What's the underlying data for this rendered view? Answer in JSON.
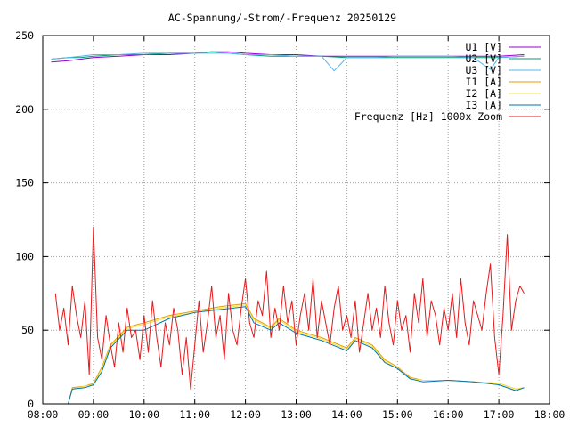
{
  "chart_data": {
    "type": "line",
    "title": "AC-Spannung/-Strom/-Frequenz 20250129",
    "xlabel": "",
    "ylabel": "",
    "grid": true,
    "legend_position": "top-right",
    "x_ticks": [
      "08:00",
      "09:00",
      "10:00",
      "11:00",
      "12:00",
      "13:00",
      "14:00",
      "15:00",
      "16:00",
      "17:00",
      "18:00"
    ],
    "y_ticks": [
      "0",
      "50",
      "100",
      "150",
      "200",
      "250"
    ],
    "xlim": [
      "08:00",
      "18:00"
    ],
    "ylim": [
      0,
      250
    ],
    "series": [
      {
        "name": "U1 [V]",
        "color": "#9400d3",
        "x": [
          "08:10",
          "08:30",
          "08:45",
          "09:00",
          "09:30",
          "10:00",
          "10:30",
          "11:00",
          "11:20",
          "11:40",
          "12:00",
          "12:30",
          "13:00",
          "13:30",
          "14:00",
          "14:30",
          "15:00",
          "15:30",
          "16:00",
          "16:30",
          "17:00",
          "17:30"
        ],
        "y": [
          232,
          233,
          234,
          235,
          236,
          237,
          237,
          238,
          239,
          239,
          238,
          237,
          237,
          236,
          236,
          236,
          236,
          236,
          236,
          236,
          236,
          237
        ]
      },
      {
        "name": "U2 [V]",
        "color": "#009e73",
        "x": [
          "08:10",
          "08:30",
          "08:45",
          "09:00",
          "09:30",
          "10:00",
          "10:30",
          "11:00",
          "11:20",
          "11:40",
          "12:00",
          "12:30",
          "13:00",
          "13:30",
          "14:00",
          "14:30",
          "15:00",
          "15:30",
          "16:00",
          "16:30",
          "17:00",
          "17:30"
        ],
        "y": [
          234,
          235,
          235,
          236,
          237,
          237,
          238,
          238,
          239,
          238,
          237,
          236,
          236,
          236,
          235,
          235,
          235,
          235,
          235,
          235,
          235,
          236
        ]
      },
      {
        "name": "U3 [V]",
        "color": "#56b4e9",
        "x": [
          "08:10",
          "08:30",
          "08:45",
          "09:00",
          "09:30",
          "10:00",
          "10:30",
          "11:00",
          "11:20",
          "11:40",
          "12:00",
          "12:30",
          "13:00",
          "13:30",
          "13:45",
          "14:00",
          "14:30",
          "15:00",
          "15:30",
          "16:00",
          "16:30",
          "16:50",
          "17:00",
          "17:30"
        ],
        "y": [
          234,
          235,
          236,
          237,
          237,
          238,
          238,
          238,
          238,
          238,
          237,
          237,
          236,
          236,
          226,
          235,
          235,
          236,
          236,
          236,
          235,
          227,
          235,
          236
        ]
      },
      {
        "name": "I1 [A]",
        "color": "#e69f00",
        "x": [
          "08:30",
          "08:35",
          "08:50",
          "09:00",
          "09:10",
          "09:20",
          "09:40",
          "10:00",
          "10:30",
          "11:00",
          "11:30",
          "12:00",
          "12:10",
          "12:30",
          "12:40",
          "13:00",
          "13:30",
          "14:00",
          "14:10",
          "14:30",
          "14:45",
          "15:00",
          "15:15",
          "15:30",
          "16:00",
          "16:30",
          "17:00",
          "17:20",
          "17:30"
        ],
        "y": [
          0,
          11,
          12,
          14,
          25,
          40,
          52,
          55,
          60,
          63,
          66,
          68,
          58,
          52,
          58,
          50,
          45,
          38,
          45,
          40,
          30,
          25,
          18,
          16,
          16,
          15,
          14,
          10,
          11
        ]
      },
      {
        "name": "I2 [A]",
        "color": "#f0e442",
        "x": [
          "08:30",
          "08:35",
          "08:50",
          "09:00",
          "09:10",
          "09:20",
          "09:40",
          "10:00",
          "10:30",
          "11:00",
          "11:30",
          "12:00",
          "12:10",
          "12:30",
          "12:40",
          "13:00",
          "13:30",
          "14:00",
          "14:10",
          "14:30",
          "14:45",
          "15:00",
          "15:15",
          "15:30",
          "16:00",
          "16:30",
          "17:00",
          "17:20",
          "17:30"
        ],
        "y": [
          0,
          10,
          12,
          13,
          24,
          39,
          51,
          54,
          59,
          62,
          65,
          67,
          57,
          51,
          57,
          49,
          44,
          37,
          44,
          39,
          29,
          24,
          17,
          16,
          16,
          15,
          14,
          10,
          11
        ]
      },
      {
        "name": "I3 [A]",
        "color": "#0072b2",
        "x": [
          "08:30",
          "08:35",
          "08:50",
          "09:00",
          "09:10",
          "09:20",
          "09:40",
          "10:00",
          "10:30",
          "11:00",
          "11:30",
          "12:00",
          "12:10",
          "12:30",
          "12:40",
          "13:00",
          "13:30",
          "14:00",
          "14:10",
          "14:30",
          "14:45",
          "15:00",
          "15:15",
          "15:30",
          "16:00",
          "16:30",
          "17:00",
          "17:20",
          "17:30"
        ],
        "y": [
          0,
          10,
          11,
          13,
          22,
          38,
          50,
          50,
          58,
          62,
          64,
          66,
          55,
          50,
          55,
          48,
          43,
          36,
          43,
          38,
          28,
          24,
          17,
          15,
          16,
          15,
          13,
          9,
          11
        ]
      },
      {
        "name": "Frequenz [Hz] 1000x Zoom",
        "color": "#e41a1c",
        "x": [
          "08:15",
          "08:20",
          "08:25",
          "08:30",
          "08:35",
          "08:40",
          "08:45",
          "08:50",
          "08:55",
          "09:00",
          "09:05",
          "09:10",
          "09:15",
          "09:20",
          "09:25",
          "09:30",
          "09:35",
          "09:40",
          "09:45",
          "09:50",
          "09:55",
          "10:00",
          "10:05",
          "10:10",
          "10:15",
          "10:20",
          "10:25",
          "10:30",
          "10:35",
          "10:40",
          "10:45",
          "10:50",
          "10:55",
          "11:00",
          "11:05",
          "11:10",
          "11:15",
          "11:20",
          "11:25",
          "11:30",
          "11:35",
          "11:40",
          "11:45",
          "11:50",
          "11:55",
          "12:00",
          "12:05",
          "12:10",
          "12:15",
          "12:20",
          "12:25",
          "12:30",
          "12:35",
          "12:40",
          "12:45",
          "12:50",
          "12:55",
          "13:00",
          "13:05",
          "13:10",
          "13:15",
          "13:20",
          "13:25",
          "13:30",
          "13:35",
          "13:40",
          "13:45",
          "13:50",
          "13:55",
          "14:00",
          "14:05",
          "14:10",
          "14:15",
          "14:20",
          "14:25",
          "14:30",
          "14:35",
          "14:40",
          "14:45",
          "14:50",
          "14:55",
          "15:00",
          "15:05",
          "15:10",
          "15:15",
          "15:20",
          "15:25",
          "15:30",
          "15:35",
          "15:40",
          "15:45",
          "15:50",
          "15:55",
          "16:00",
          "16:05",
          "16:10",
          "16:15",
          "16:20",
          "16:25",
          "16:30",
          "16:35",
          "16:40",
          "16:45",
          "16:50",
          "16:55",
          "17:00",
          "17:05",
          "17:10",
          "17:15",
          "17:20",
          "17:25",
          "17:30"
        ],
        "y": [
          75,
          50,
          65,
          40,
          80,
          60,
          45,
          70,
          20,
          120,
          45,
          30,
          60,
          40,
          25,
          55,
          35,
          65,
          45,
          50,
          30,
          60,
          35,
          70,
          45,
          25,
          55,
          40,
          65,
          50,
          20,
          45,
          10,
          40,
          70,
          35,
          55,
          80,
          45,
          60,
          30,
          75,
          50,
          40,
          65,
          85,
          55,
          45,
          70,
          60,
          90,
          45,
          65,
          50,
          80,
          55,
          70,
          40,
          60,
          75,
          50,
          85,
          45,
          70,
          55,
          40,
          65,
          80,
          50,
          60,
          45,
          70,
          35,
          55,
          75,
          50,
          65,
          45,
          80,
          55,
          40,
          70,
          50,
          60,
          35,
          75,
          55,
          85,
          45,
          70,
          60,
          40,
          65,
          50,
          75,
          45,
          85,
          55,
          40,
          70,
          60,
          50,
          75,
          95,
          45,
          20,
          60,
          115,
          50,
          70,
          80,
          75
        ]
      }
    ]
  }
}
